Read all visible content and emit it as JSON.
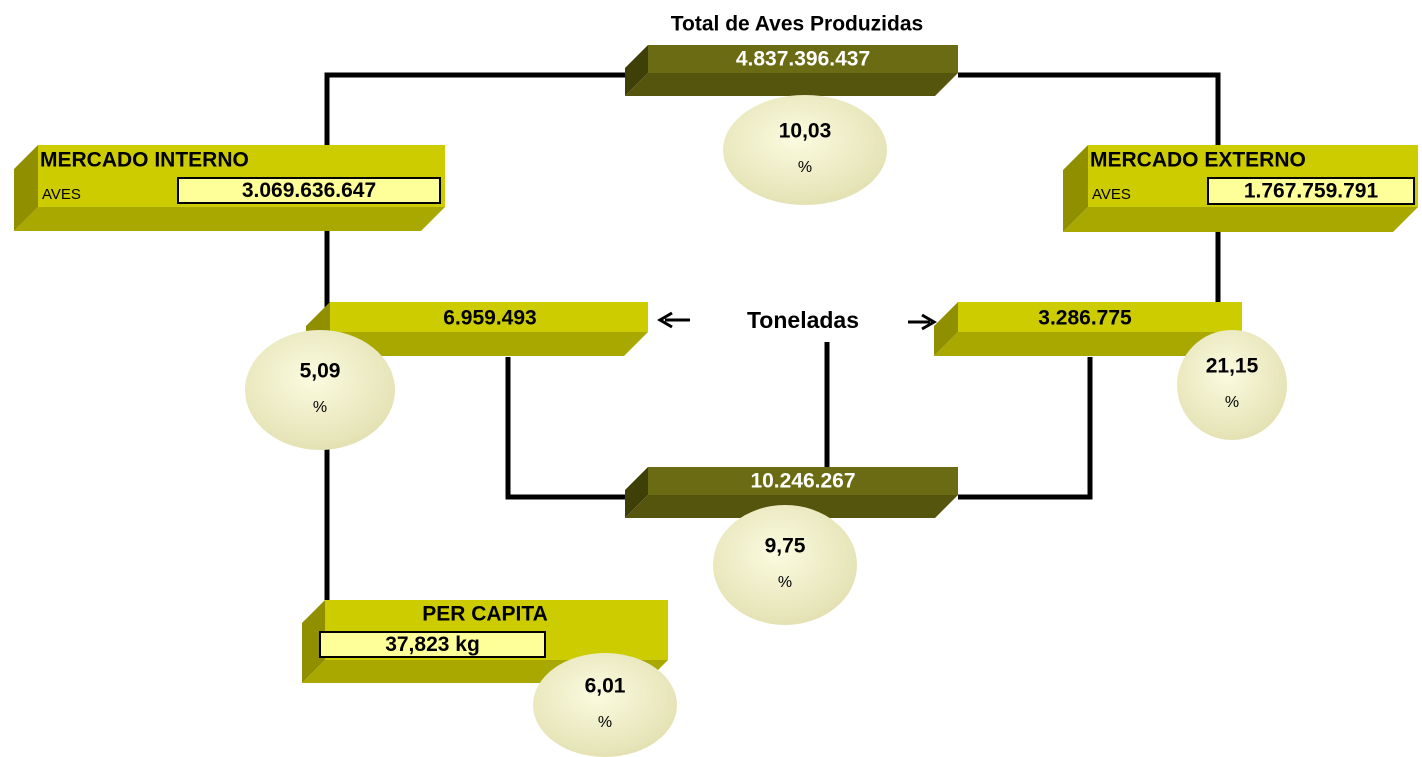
{
  "title": "Total de Aves Produzidas",
  "total": {
    "value": "4.837.396.437",
    "percent": "10,03",
    "percent_sign": "%"
  },
  "mercado_interno": {
    "title": "MERCADO  INTERNO",
    "label": "AVES",
    "value": "3.069.636.647"
  },
  "mercado_externo": {
    "title": "MERCADO   EXTERNO",
    "label": "AVES",
    "value": "1.767.759.791"
  },
  "toneladas": {
    "label": "Toneladas",
    "interno": {
      "value": "6.959.493",
      "percent": "5,09",
      "percent_sign": "%"
    },
    "externo": {
      "value": "3.286.775",
      "percent": "21,15",
      "percent_sign": "%"
    },
    "total": {
      "value": "10.246.267",
      "percent": "9,75",
      "percent_sign": "%"
    }
  },
  "per_capita": {
    "title": "PER  CAPITA",
    "value": "37,823 kg",
    "percent": "6,01",
    "percent_sign": "%"
  }
}
